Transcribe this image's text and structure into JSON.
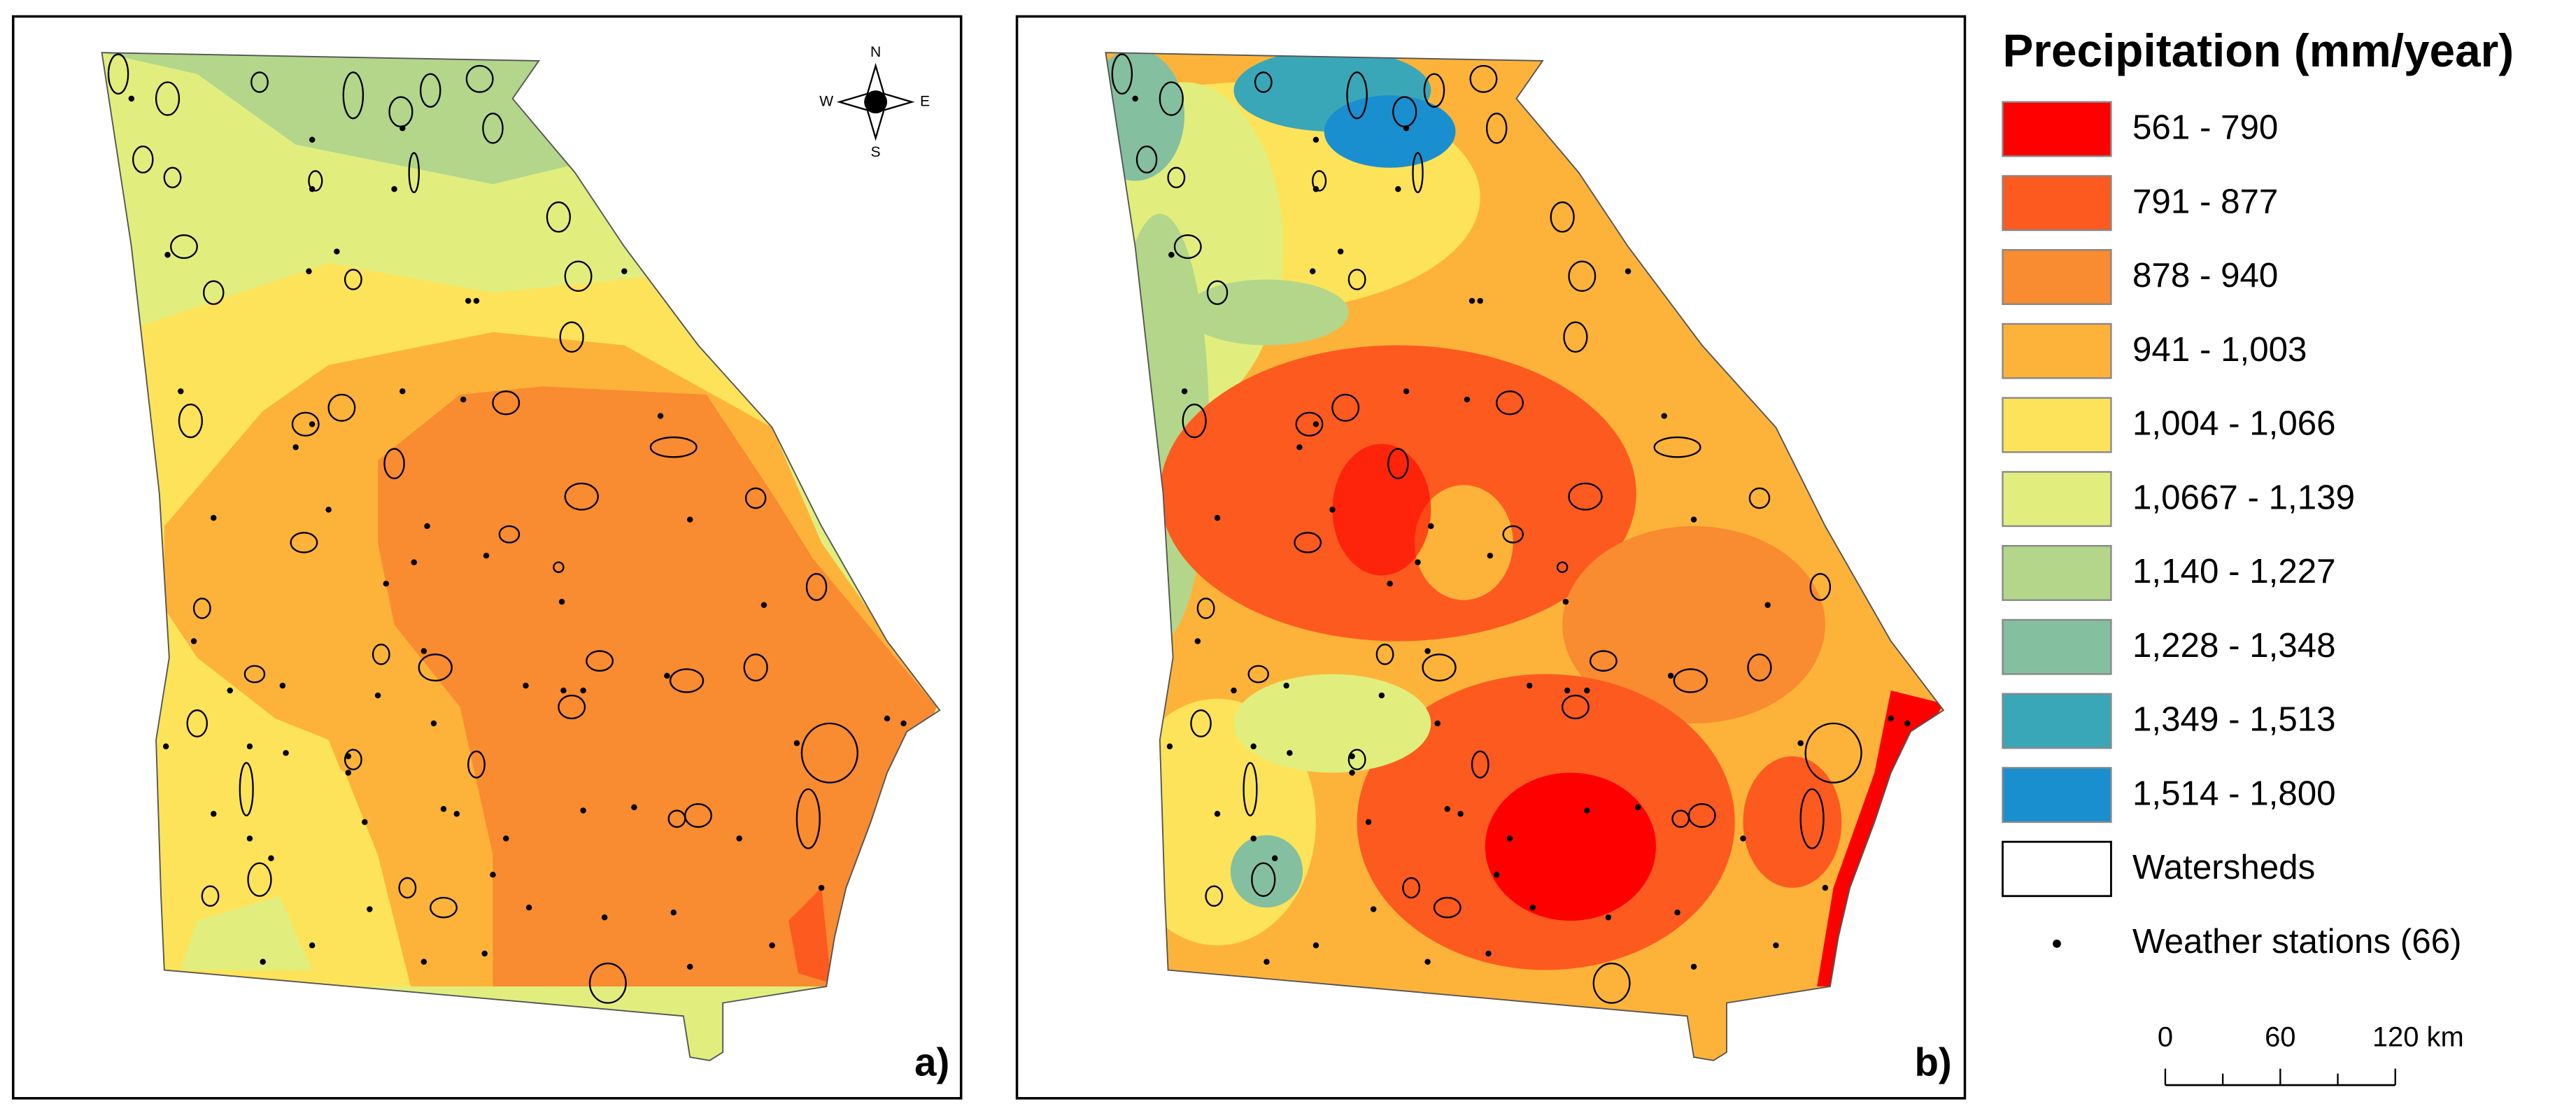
{
  "legend": {
    "title": "Precipitation (mm/year)",
    "items": [
      {
        "label": "561 - 790",
        "color": "#ff0000"
      },
      {
        "label": "791 - 877",
        "color": "#fd5a20"
      },
      {
        "label": "878 - 940",
        "color": "#f98b30"
      },
      {
        "label": "941 - 1,003",
        "color": "#fdb33a"
      },
      {
        "label": "1,004 - 1,066",
        "color": "#fde35a"
      },
      {
        "label": "1,0667 - 1,139",
        "color": "#e1ee7e"
      },
      {
        "label": "1,140 - 1,227",
        "color": "#b3d68b"
      },
      {
        "label": "1,228 - 1,348",
        "color": "#84bfa0"
      },
      {
        "label": "1,349 - 1,513",
        "color": "#3aa7b8"
      },
      {
        "label": "1,514 - 1,800",
        "color": "#1a8fcf"
      }
    ],
    "watersheds": "Watersheds",
    "stations": "Weather stations (66)"
  },
  "panels": [
    {
      "label": "a)"
    },
    {
      "label": "b)"
    }
  ],
  "compass": {
    "n": "N",
    "s": "S",
    "e": "E",
    "w": "W"
  },
  "scale_bar": {
    "labels": [
      "0",
      "60",
      "120 km"
    ]
  }
}
